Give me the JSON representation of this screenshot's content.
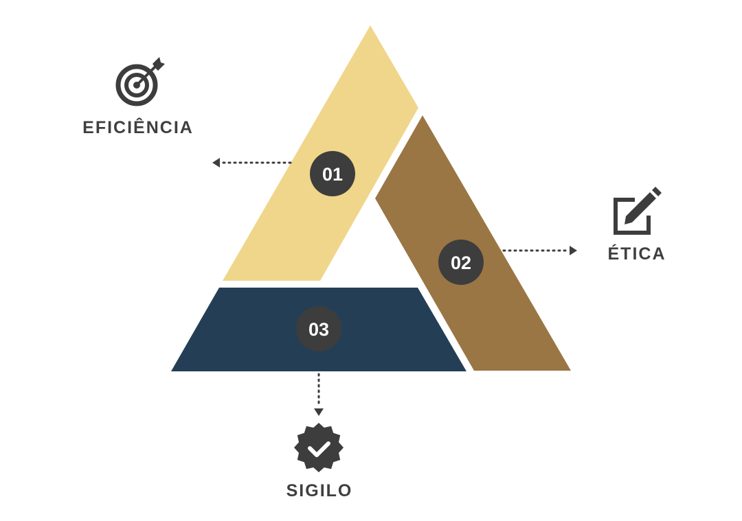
{
  "colors": {
    "segment_1": "#F0D68A",
    "segment_2": "#9A7644",
    "segment_3": "#243F55",
    "badge": "#3D3D3D",
    "text": "#3F3F3F"
  },
  "segments": [
    {
      "number": "01",
      "label": "EFICIÊNCIA",
      "icon": "target-icon"
    },
    {
      "number": "02",
      "label": "ÉTICA",
      "icon": "edit-icon"
    },
    {
      "number": "03",
      "label": "SIGILO",
      "icon": "verified-badge-icon"
    }
  ]
}
